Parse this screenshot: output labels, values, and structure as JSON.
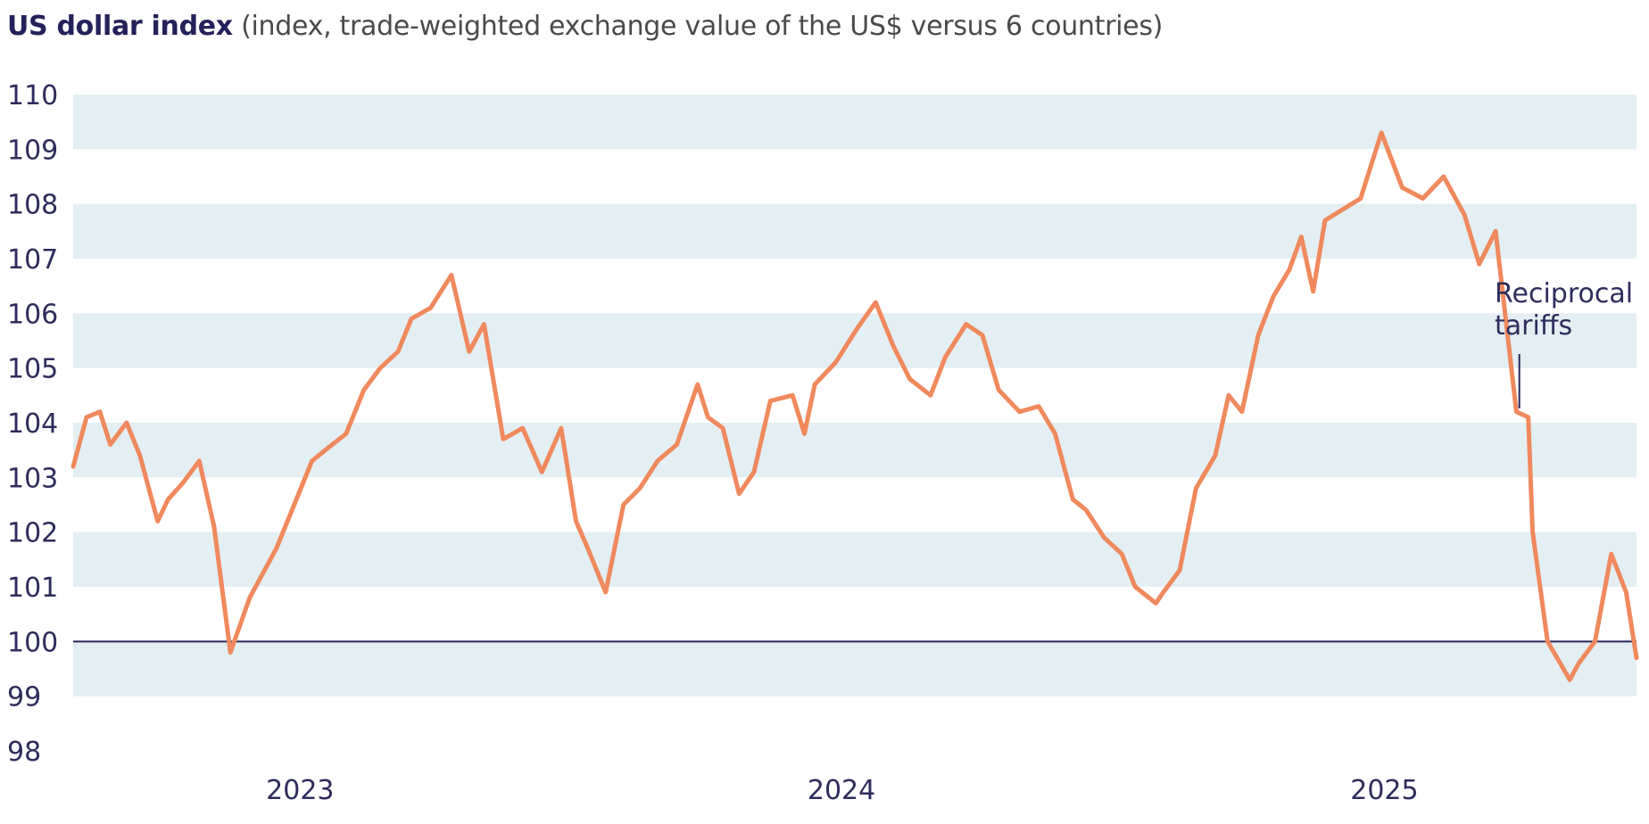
{
  "title": {
    "bold": "US dollar index",
    "subtitle": "(index, trade-weighted exchange value of the US$ versus 6 countries)"
  },
  "colors": {
    "line": "#f0895d",
    "band": "#e3eff3",
    "baseline": "#27245a",
    "text": "#2e2c5c"
  },
  "chart_data": {
    "type": "line",
    "title": "US dollar index",
    "subtitle": "(index, trade-weighted exchange value of the US$ versus 6 countries)",
    "xlabel": "",
    "ylabel": "",
    "ylim": [
      98,
      110
    ],
    "xlim": [
      "2022-08-01",
      "2025-06-20"
    ],
    "y_ticks": [
      98,
      99,
      100,
      101,
      102,
      103,
      104,
      105,
      106,
      107,
      108,
      109,
      110
    ],
    "x_ticks": [
      {
        "label": "2023",
        "date": "2023-01-01"
      },
      {
        "label": "2024",
        "date": "2024-01-01"
      },
      {
        "label": "2025",
        "date": "2025-01-01"
      }
    ],
    "grid": "alternating horizontal bands",
    "reference_line": 100,
    "annotations": [
      {
        "text": [
          "Reciprocal",
          "tariffs"
        ],
        "date": "2025-04-02",
        "value": 104.1
      }
    ],
    "series": [
      {
        "x": [
          "2022-08-01",
          "2022-08-10",
          "2022-08-19",
          "2022-08-26",
          "2022-09-06",
          "2022-09-15",
          "2022-09-27",
          "2022-10-04",
          "2022-10-14",
          "2022-10-25",
          "2022-11-04",
          "2022-11-15",
          "2022-11-28",
          "2022-12-08",
          "2022-12-16",
          "2022-12-28",
          "2023-01-09",
          "2023-01-18",
          "2023-02-01",
          "2023-02-13",
          "2023-02-24",
          "2023-03-08",
          "2023-03-17",
          "2023-03-30",
          "2023-04-13",
          "2023-04-25",
          "2023-05-05",
          "2023-05-18",
          "2023-05-31",
          "2023-06-13",
          "2023-06-26",
          "2023-07-06",
          "2023-07-14",
          "2023-07-26",
          "2023-08-07",
          "2023-08-18",
          "2023-08-30",
          "2023-09-12",
          "2023-09-26",
          "2023-10-03",
          "2023-10-13",
          "2023-10-24",
          "2023-11-03",
          "2023-11-14",
          "2023-11-29",
          "2023-12-07",
          "2023-12-14",
          "2023-12-28",
          "2024-01-11",
          "2024-01-24",
          "2024-02-05",
          "2024-02-16",
          "2024-03-01",
          "2024-03-11",
          "2024-03-25",
          "2024-04-05",
          "2024-04-16",
          "2024-04-30",
          "2024-05-13",
          "2024-05-24",
          "2024-06-05",
          "2024-06-14",
          "2024-06-26",
          "2024-07-08",
          "2024-07-17",
          "2024-07-31",
          "2024-08-05",
          "2024-08-16",
          "2024-08-27",
          "2024-09-09",
          "2024-09-18",
          "2024-09-27",
          "2024-10-08",
          "2024-10-18",
          "2024-10-29",
          "2024-11-06",
          "2024-11-14",
          "2024-11-22",
          "2024-12-04",
          "2024-12-16",
          "2024-12-30",
          "2025-01-13",
          "2025-01-27",
          "2025-02-10",
          "2025-02-24",
          "2025-03-06",
          "2025-03-17",
          "2025-03-31",
          "2025-04-08",
          "2025-04-11",
          "2025-04-21",
          "2025-05-06",
          "2025-05-12",
          "2025-05-23",
          "2025-06-03",
          "2025-06-13",
          "2025-06-20"
        ],
        "values": [
          103.2,
          104.1,
          104.2,
          103.6,
          104.0,
          103.4,
          102.2,
          102.6,
          102.9,
          103.3,
          102.1,
          99.8,
          100.8,
          101.3,
          101.7,
          102.5,
          103.3,
          103.5,
          103.8,
          104.6,
          105.0,
          105.3,
          105.9,
          106.1,
          106.7,
          105.3,
          105.8,
          103.7,
          103.9,
          103.1,
          103.9,
          102.2,
          101.7,
          100.9,
          102.5,
          102.8,
          103.3,
          103.6,
          104.7,
          104.1,
          103.9,
          102.7,
          103.1,
          104.4,
          104.5,
          103.8,
          104.7,
          105.1,
          105.7,
          106.2,
          105.4,
          104.8,
          104.5,
          105.2,
          105.8,
          105.6,
          104.6,
          104.2,
          104.3,
          103.8,
          102.6,
          102.4,
          101.9,
          101.6,
          101.0,
          100.7,
          100.9,
          101.3,
          102.8,
          103.4,
          104.5,
          104.2,
          105.6,
          106.3,
          106.8,
          107.4,
          106.4,
          107.7,
          107.9,
          108.1,
          109.3,
          108.3,
          108.1,
          108.5,
          107.8,
          106.9,
          107.5,
          104.2,
          104.1,
          102.0,
          100.0,
          99.3,
          99.6,
          100.0,
          101.6,
          100.9,
          99.7
        ]
      }
    ]
  }
}
